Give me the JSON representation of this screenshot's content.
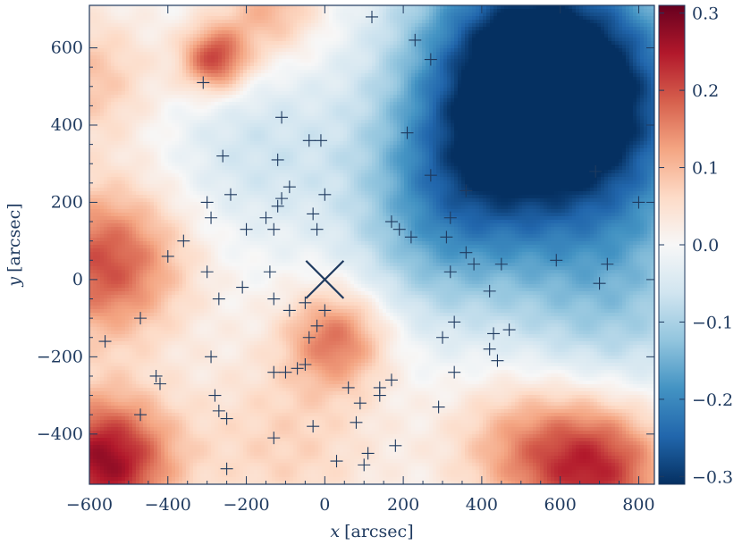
{
  "chart_data": {
    "type": "heatmap",
    "title": "",
    "xlabel_var": "x",
    "xlabel_unit": "[arcsec]",
    "ylabel_var": "y",
    "ylabel_unit": "[arcsec]",
    "xlim": [
      -600,
      840
    ],
    "ylim": [
      -530,
      710
    ],
    "x_ticks": [
      -600,
      -400,
      -200,
      0,
      200,
      400,
      600,
      800
    ],
    "y_ticks": [
      -400,
      -200,
      0,
      200,
      400,
      600
    ],
    "x_tick_labels": [
      "−600",
      "−400",
      "−200",
      "0",
      "200",
      "400",
      "600",
      "800"
    ],
    "y_tick_labels": [
      "−400",
      "−200",
      "0",
      "200",
      "400",
      "600"
    ],
    "colorbar": {
      "range": [
        -0.31,
        0.31
      ],
      "ticks": [
        0.3,
        0.2,
        0.1,
        0.0,
        -0.1,
        -0.2,
        -0.3
      ],
      "tick_labels": [
        "0.3",
        "0.2",
        "0.1",
        "0.0",
        "−0.1",
        "−0.2",
        "−0.3"
      ],
      "colormap": [
        "#053061",
        "#2166ac",
        "#4393c3",
        "#92c5de",
        "#d1e5f0",
        "#f7f7f7",
        "#fddbc7",
        "#f4a582",
        "#d6604d",
        "#b2182b",
        "#67001f"
      ]
    },
    "field_blobs": [
      {
        "x": 650,
        "y": 420,
        "value": -0.3,
        "sigma": 230
      },
      {
        "x": 500,
        "y": 600,
        "value": -0.22,
        "sigma": 200
      },
      {
        "x": 330,
        "y": 260,
        "value": -0.14,
        "sigma": 170
      },
      {
        "x": 720,
        "y": -60,
        "value": -0.1,
        "sigma": 200
      },
      {
        "x": 260,
        "y": 40,
        "value": -0.06,
        "sigma": 150
      },
      {
        "x": -170,
        "y": 330,
        "value": -0.06,
        "sigma": 160
      },
      {
        "x": -280,
        "y": 570,
        "value": 0.21,
        "sigma": 60
      },
      {
        "x": -560,
        "y": 40,
        "value": 0.2,
        "sigma": 140
      },
      {
        "x": -560,
        "y": -470,
        "value": 0.27,
        "sigma": 120
      },
      {
        "x": -600,
        "y": 520,
        "value": 0.09,
        "sigma": 120
      },
      {
        "x": 30,
        "y": -150,
        "value": 0.16,
        "sigma": 90
      },
      {
        "x": -100,
        "y": -430,
        "value": 0.07,
        "sigma": 180
      },
      {
        "x": 700,
        "y": -490,
        "value": 0.22,
        "sigma": 130
      },
      {
        "x": 500,
        "y": -430,
        "value": 0.11,
        "sigma": 130
      },
      {
        "x": -140,
        "y": 700,
        "value": 0.11,
        "sigma": 90
      }
    ],
    "center_marker": {
      "x": 0,
      "y": 0,
      "symbol": "X"
    },
    "plus_markers": [
      {
        "x": 120,
        "y": 680
      },
      {
        "x": 230,
        "y": 620
      },
      {
        "x": 270,
        "y": 570
      },
      {
        "x": -310,
        "y": 510
      },
      {
        "x": -110,
        "y": 420
      },
      {
        "x": 210,
        "y": 380
      },
      {
        "x": -40,
        "y": 360
      },
      {
        "x": -10,
        "y": 360
      },
      {
        "x": -260,
        "y": 320
      },
      {
        "x": -120,
        "y": 310
      },
      {
        "x": 270,
        "y": 270
      },
      {
        "x": -90,
        "y": 240
      },
      {
        "x": -240,
        "y": 220
      },
      {
        "x": -110,
        "y": 210
      },
      {
        "x": 0,
        "y": 220
      },
      {
        "x": 360,
        "y": 230
      },
      {
        "x": -300,
        "y": 200
      },
      {
        "x": -120,
        "y": 190
      },
      {
        "x": 690,
        "y": 280
      },
      {
        "x": 800,
        "y": 200
      },
      {
        "x": -290,
        "y": 160
      },
      {
        "x": -150,
        "y": 160
      },
      {
        "x": -30,
        "y": 170
      },
      {
        "x": 170,
        "y": 150
      },
      {
        "x": 320,
        "y": 160
      },
      {
        "x": -200,
        "y": 130
      },
      {
        "x": -130,
        "y": 130
      },
      {
        "x": -20,
        "y": 130
      },
      {
        "x": 190,
        "y": 130
      },
      {
        "x": 310,
        "y": 110
      },
      {
        "x": -360,
        "y": 100
      },
      {
        "x": 220,
        "y": 110
      },
      {
        "x": 360,
        "y": 70
      },
      {
        "x": -400,
        "y": 60
      },
      {
        "x": 380,
        "y": 40
      },
      {
        "x": 450,
        "y": 40
      },
      {
        "x": 590,
        "y": 50
      },
      {
        "x": 720,
        "y": 40
      },
      {
        "x": -300,
        "y": 20
      },
      {
        "x": -140,
        "y": 20
      },
      {
        "x": 320,
        "y": 20
      },
      {
        "x": -210,
        "y": -20
      },
      {
        "x": 700,
        "y": -10
      },
      {
        "x": 420,
        "y": -30
      },
      {
        "x": -270,
        "y": -50
      },
      {
        "x": -130,
        "y": -50
      },
      {
        "x": -50,
        "y": -60
      },
      {
        "x": -90,
        "y": -80
      },
      {
        "x": 0,
        "y": -80
      },
      {
        "x": -470,
        "y": -100
      },
      {
        "x": 330,
        "y": -110
      },
      {
        "x": -20,
        "y": -120
      },
      {
        "x": 300,
        "y": -150
      },
      {
        "x": 430,
        "y": -140
      },
      {
        "x": 470,
        "y": -130
      },
      {
        "x": -560,
        "y": -160
      },
      {
        "x": -40,
        "y": -150
      },
      {
        "x": -290,
        "y": -200
      },
      {
        "x": 420,
        "y": -180
      },
      {
        "x": 440,
        "y": -210
      },
      {
        "x": -50,
        "y": -220
      },
      {
        "x": -70,
        "y": -230
      },
      {
        "x": -130,
        "y": -240
      },
      {
        "x": -100,
        "y": -240
      },
      {
        "x": 330,
        "y": -240
      },
      {
        "x": 170,
        "y": -260
      },
      {
        "x": -430,
        "y": -250
      },
      {
        "x": -420,
        "y": -270
      },
      {
        "x": 140,
        "y": -280
      },
      {
        "x": 60,
        "y": -280
      },
      {
        "x": 140,
        "y": -300
      },
      {
        "x": -280,
        "y": -300
      },
      {
        "x": 90,
        "y": -320
      },
      {
        "x": 290,
        "y": -330
      },
      {
        "x": -270,
        "y": -340
      },
      {
        "x": -250,
        "y": -360
      },
      {
        "x": -470,
        "y": -350
      },
      {
        "x": 80,
        "y": -370
      },
      {
        "x": -30,
        "y": -380
      },
      {
        "x": -130,
        "y": -410
      },
      {
        "x": 180,
        "y": -430
      },
      {
        "x": 110,
        "y": -450
      },
      {
        "x": 30,
        "y": -470
      },
      {
        "x": 100,
        "y": -480
      },
      {
        "x": -250,
        "y": -490
      }
    ]
  }
}
